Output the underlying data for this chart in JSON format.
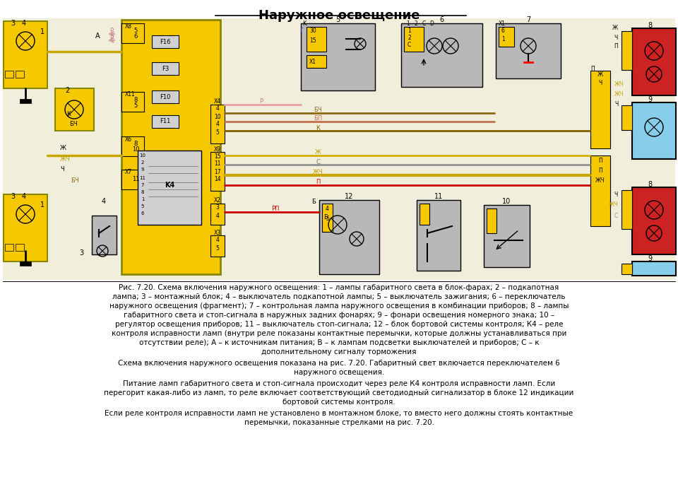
{
  "title": "Наружное освещение",
  "background_color": "#ffffff",
  "caption_line1": "Рис. 7.20. Схема включения наружного освещения: 1 – лампы габаритного света в блок-фарах; 2 – подкапотная",
  "caption_line2": "лампа; 3 – монтажный блок; 4 – выключатель подкапотной лампы; 5 – выключатель зажигания; 6 – переключатель",
  "caption_line3": "наружного освещения (фрагмент); 7 – контрольная лампа наружного освещения в комбинации приборов; 8 – лампы",
  "caption_line4": "габаритного света и стоп-сигнала в наружных задних фонарях; 9 – фонари освещения номерного знака; 10 –",
  "caption_line5": "регулятор освещения приборов; 11 – выключатель стоп-сигнала; 12 – блок бортовой системы контроля; К4 – реле",
  "caption_line6": "контроля исправности ламп (внутри реле показаны контактные перемычки, которые должны устанавливаться при",
  "caption_line7": "отсутствии реле); А – к источникам питания; В – к лампам подсветки выключателей и приборов; С – к",
  "caption_line8": "дополнительному сигналу торможения",
  "para2_line1": "Схема включения наружного освещения показана на рис. 7.20. Габаритный свет включается переключателем 6",
  "para2_line2": "наружного освещения.",
  "para3_line1": "Питание ламп габаритного света и стоп-сигнала происходит через реле К4 контроля исправности ламп. Если",
  "para3_line2": "перегорит какая-либо из ламп, то реле включает соответствующий светодиодный сигнализатор в блоке 12 индикации",
  "para3_line3": "бортовой системы контроля.",
  "para4_line1": "Если реле контроля исправности ламп не установлено в монтажном блоке, то вместо него должны стоять контактные",
  "para4_line2": "перемычки, показанные стрелками на рис. 7.20."
}
